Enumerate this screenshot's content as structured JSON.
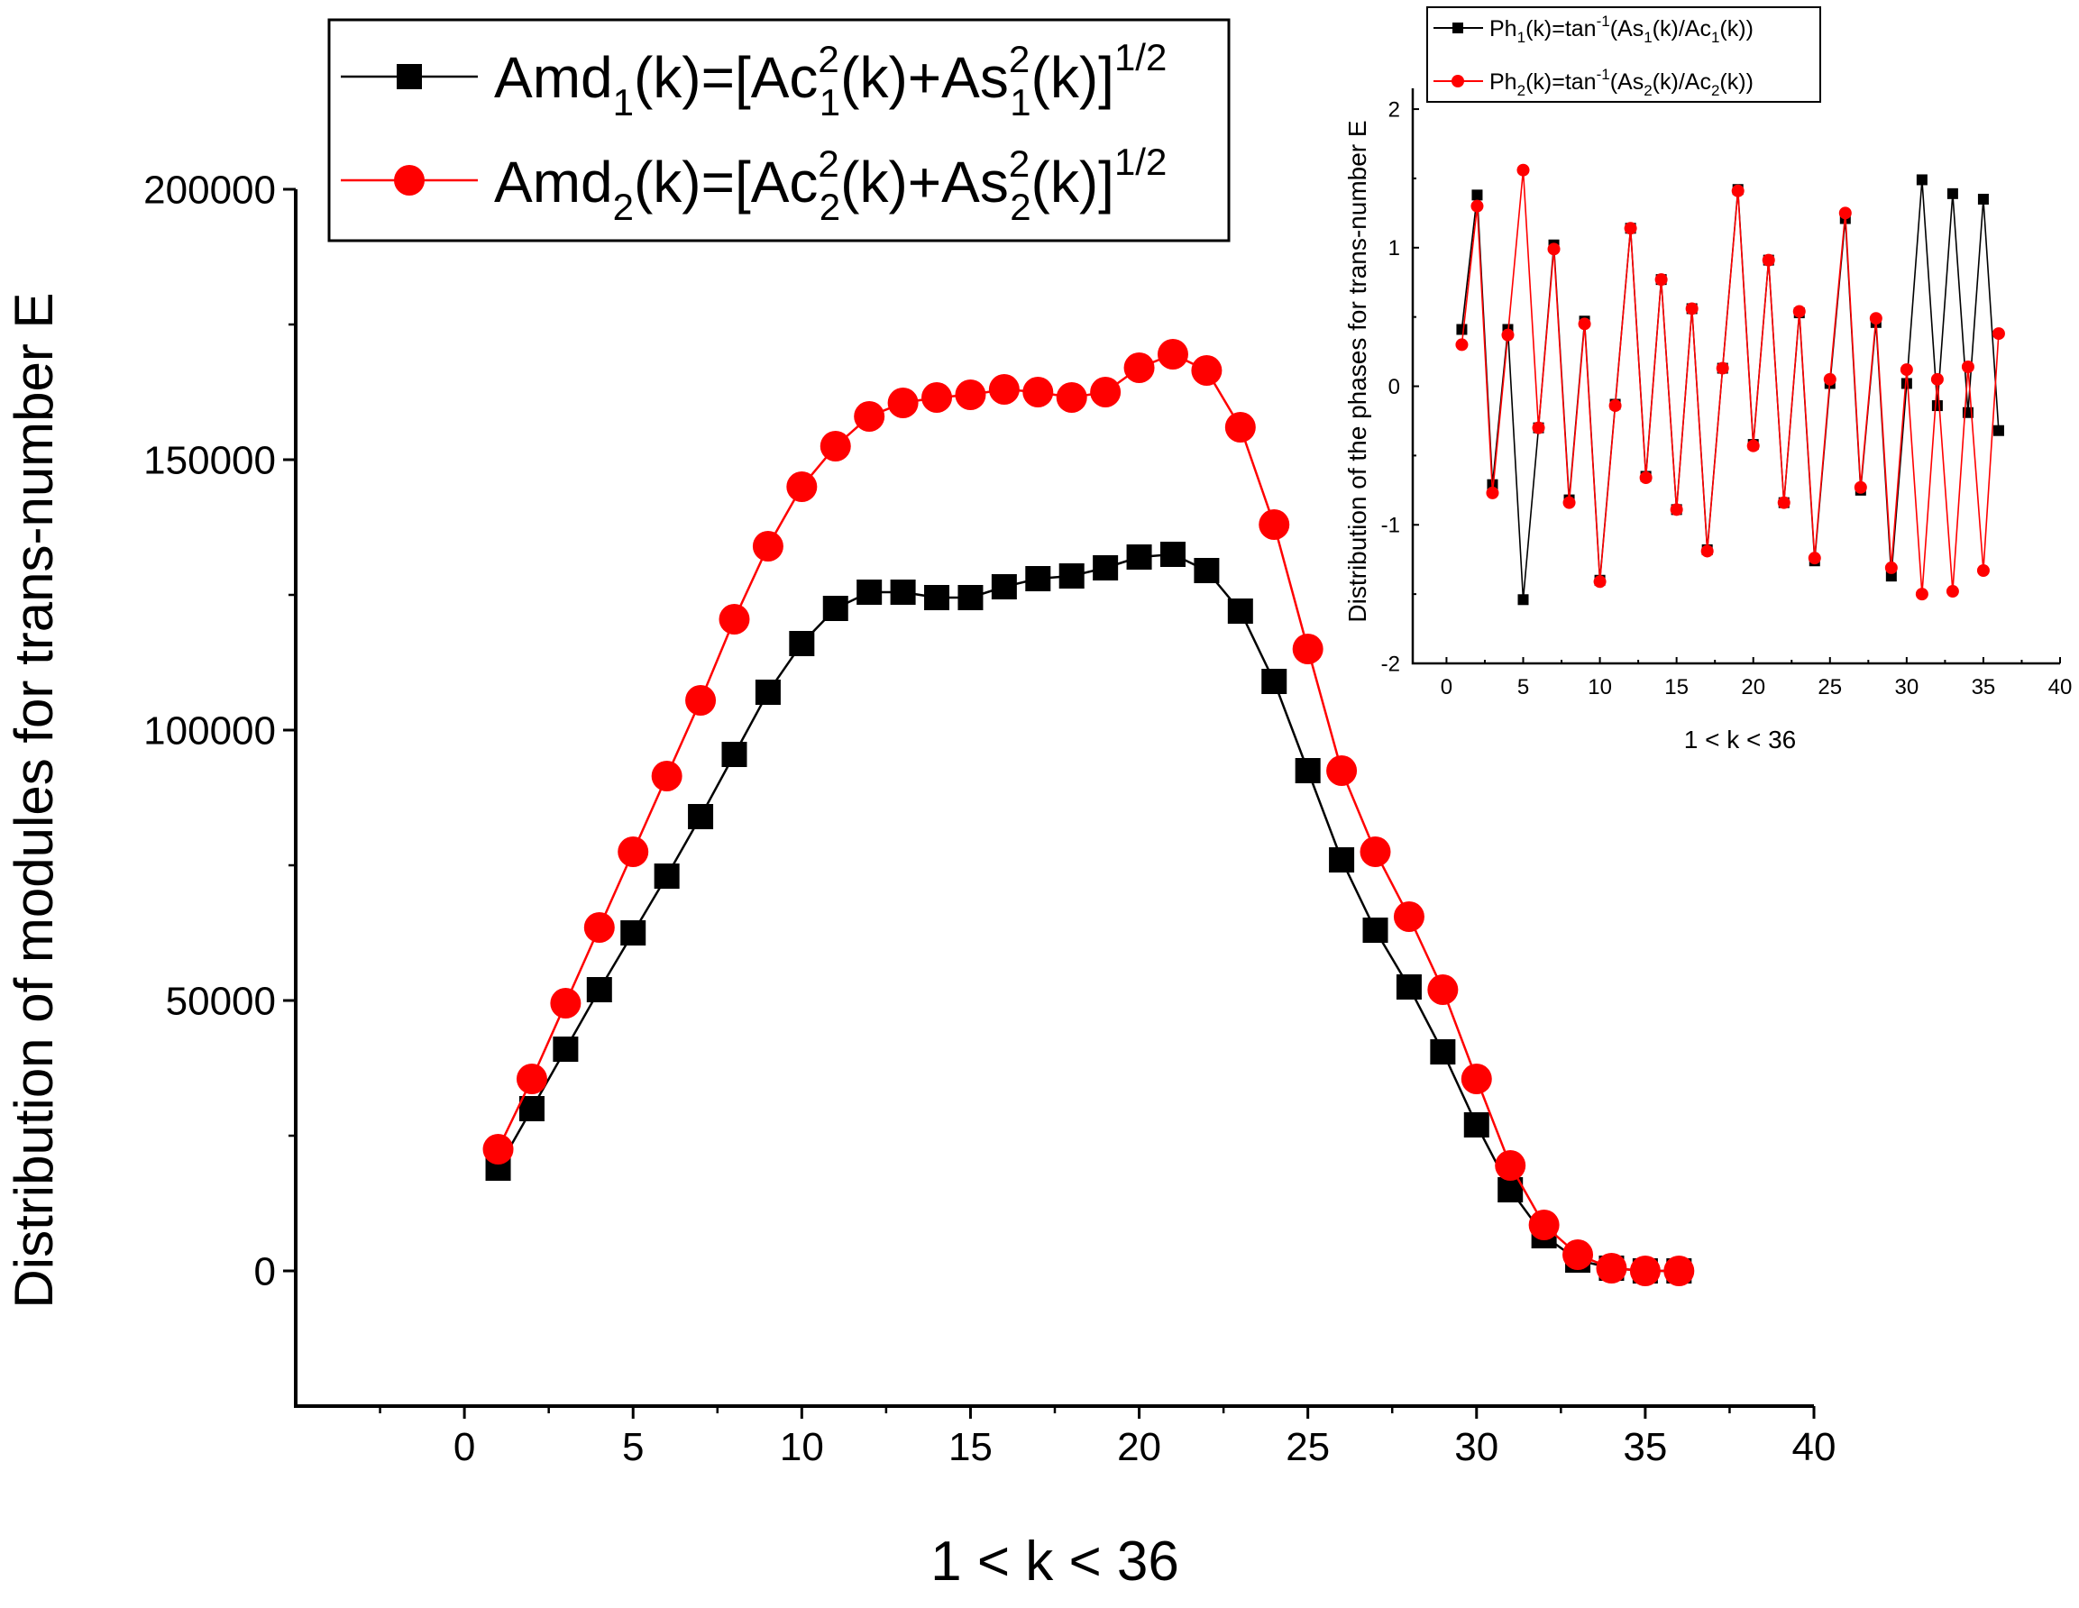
{
  "chart_data": [
    {
      "id": "main",
      "type": "line",
      "xlabel": "1 < k < 36",
      "ylabel": "Distribution of modules for trans-number E",
      "xlim": [
        -5,
        40
      ],
      "ylim": [
        -25000,
        200000
      ],
      "xticks": [
        0,
        5,
        10,
        15,
        20,
        25,
        30,
        35,
        40
      ],
      "yticks": [
        0,
        50000,
        100000,
        150000,
        200000
      ],
      "legend_position": "top-left",
      "x": [
        1,
        2,
        3,
        4,
        5,
        6,
        7,
        8,
        9,
        10,
        11,
        12,
        13,
        14,
        15,
        16,
        17,
        18,
        19,
        20,
        21,
        22,
        23,
        24,
        25,
        26,
        27,
        28,
        29,
        30,
        31,
        32,
        33,
        34,
        35,
        36
      ],
      "series": [
        {
          "name": "Amd1",
          "legend": {
            "pre": "Amd",
            "sub": "1",
            "mid": "(k)=[Ac",
            "sup1": "2",
            "sub1": "1",
            "mid2": "(k)+As",
            "sup2": "2",
            "sub2": "1",
            "post": "(k)]",
            "exp": "1/2"
          },
          "color": "#000000",
          "marker": "square",
          "values": [
            19000,
            30000,
            41000,
            52000,
            62500,
            73000,
            84000,
            95500,
            107000,
            116000,
            122500,
            125500,
            125500,
            124500,
            124500,
            126500,
            128000,
            128500,
            130000,
            132000,
            132500,
            129500,
            122000,
            109000,
            92500,
            76000,
            63000,
            52500,
            40500,
            27000,
            15000,
            6500,
            2000,
            500,
            0,
            0
          ]
        },
        {
          "name": "Amd2",
          "legend": {
            "pre": "Amd",
            "sub": "2",
            "mid": "(k)=[Ac",
            "sup1": "2",
            "sub1": "2",
            "mid2": "(k)+As",
            "sup2": "2",
            "sub2": "2",
            "post": "(k)]",
            "exp": "1/2"
          },
          "color": "#ff0000",
          "marker": "circle",
          "values": [
            22500,
            35500,
            49500,
            63500,
            77500,
            91500,
            105500,
            120500,
            134000,
            145000,
            152500,
            158000,
            160500,
            161500,
            162000,
            163000,
            162500,
            161500,
            162500,
            167000,
            169500,
            166500,
            156000,
            138000,
            115000,
            92500,
            77500,
            65500,
            52000,
            35500,
            19500,
            8500,
            3000,
            500,
            0,
            0
          ]
        }
      ]
    },
    {
      "id": "inset",
      "type": "line",
      "xlabel": "1 < k < 36",
      "ylabel": "Distribution of the phases for trans-number E",
      "xlim": [
        -2.2,
        40
      ],
      "ylim": [
        -2,
        2.15
      ],
      "xticks": [
        0,
        5,
        10,
        15,
        20,
        25,
        30,
        35,
        40
      ],
      "yticks": [
        -2,
        -1,
        0,
        1,
        2
      ],
      "legend_position": "top",
      "x": [
        1,
        2,
        3,
        4,
        5,
        6,
        7,
        8,
        9,
        10,
        11,
        12,
        13,
        14,
        15,
        16,
        17,
        18,
        19,
        20,
        21,
        22,
        23,
        24,
        25,
        26,
        27,
        28,
        29,
        30,
        31,
        32,
        33,
        34,
        35,
        36
      ],
      "series": [
        {
          "name": "Ph1",
          "legend": {
            "pre": "Ph",
            "sub": "1",
            "mid": "(k)=tan",
            "sup": "-1",
            "mid2": "(As",
            "sub2": "1",
            "mid3": "(k)/Ac",
            "sub3": "1",
            "post": "(k))"
          },
          "color": "#000000",
          "marker": "square",
          "values": [
            0.41,
            1.38,
            -0.71,
            0.41,
            -1.54,
            -0.3,
            1.02,
            -0.82,
            0.47,
            -1.4,
            -0.13,
            1.14,
            -0.65,
            0.77,
            -0.89,
            0.56,
            -1.18,
            0.13,
            1.42,
            -0.42,
            0.91,
            -0.84,
            0.53,
            -1.26,
            0.02,
            1.21,
            -0.75,
            0.46,
            -1.37,
            0.02,
            1.49,
            -0.14,
            1.39,
            -0.19,
            1.35,
            -0.32
          ]
        },
        {
          "name": "Ph2",
          "legend": {
            "pre": "Ph",
            "sub": "2",
            "mid": "(k)=tan",
            "sup": "-1",
            "mid2": "(As",
            "sub2": "2",
            "mid3": "(k)/Ac",
            "sub3": "2",
            "post": "(k))"
          },
          "color": "#ff0000",
          "marker": "circle",
          "values": [
            0.3,
            1.3,
            -0.77,
            0.37,
            1.56,
            -0.3,
            0.99,
            -0.84,
            0.45,
            -1.41,
            -0.14,
            1.14,
            -0.66,
            0.77,
            -0.89,
            0.56,
            -1.19,
            0.13,
            1.41,
            -0.43,
            0.91,
            -0.84,
            0.54,
            -1.24,
            0.05,
            1.25,
            -0.73,
            0.49,
            -1.31,
            0.12,
            -1.5,
            0.05,
            -1.48,
            0.14,
            -1.33,
            0.38
          ]
        }
      ]
    }
  ]
}
